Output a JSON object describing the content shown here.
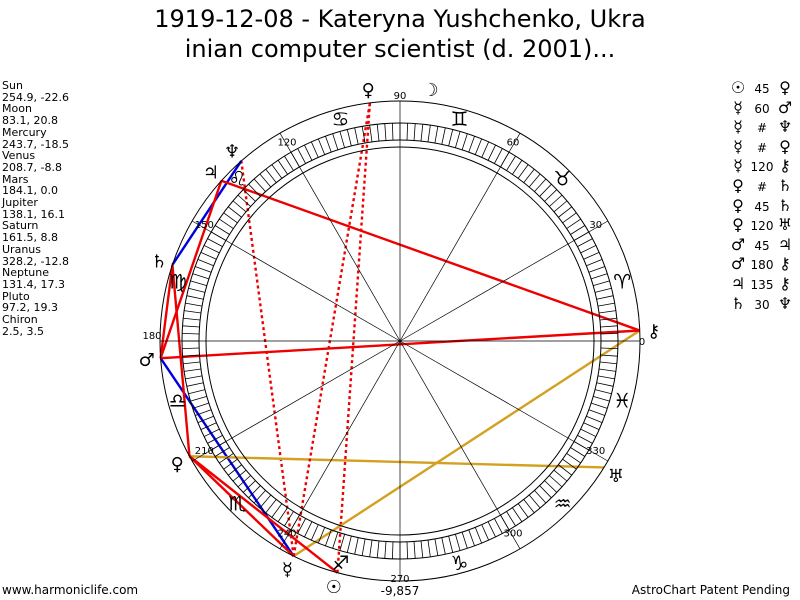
{
  "title_line1": "1919-12-08 - Kateryna Yushchenko, Ukra",
  "title_line2": "inian computer scientist (d. 2001)...",
  "positions": [
    {
      "name": "Sun",
      "coords": "254.9, -22.6",
      "glyph": "☉",
      "lon": 254.9
    },
    {
      "name": "Moon",
      "coords": "83.1, 20.8",
      "glyph": "☽",
      "lon": 83.1
    },
    {
      "name": "Mercury",
      "coords": "243.7, -18.5",
      "glyph": "☿",
      "lon": 243.7
    },
    {
      "name": "Venus",
      "coords": "208.7, -8.8",
      "glyph": "♀",
      "lon": 208.7
    },
    {
      "name": "Mars",
      "coords": "184.1, 0.0",
      "glyph": "♂",
      "lon": 184.1
    },
    {
      "name": "Jupiter",
      "coords": "138.1, 16.1",
      "glyph": "♃",
      "lon": 138.1
    },
    {
      "name": "Saturn",
      "coords": "161.5, 8.8",
      "glyph": "♄",
      "lon": 161.5
    },
    {
      "name": "Uranus",
      "coords": "328.2, -12.8",
      "glyph": "♅",
      "lon": 328.2
    },
    {
      "name": "Neptune",
      "coords": "131.4, 17.3",
      "glyph": "♆",
      "lon": 131.4
    },
    {
      "name": "Pluto",
      "coords": "97.2, 19.3",
      "glyph": "♀",
      "lon": 97.2
    },
    {
      "name": "Chiron",
      "coords": "2.5, 3.5",
      "glyph": "⚷",
      "lon": 2.5
    }
  ],
  "aspects": [
    {
      "p1": "☉",
      "angle": "45",
      "p2": "♀"
    },
    {
      "p1": "☿",
      "angle": "60",
      "p2": "♂"
    },
    {
      "p1": "☿",
      "angle": "#",
      "p2": "♆"
    },
    {
      "p1": "☿",
      "angle": "#",
      "p2": "♀"
    },
    {
      "p1": "☿",
      "angle": "120",
      "p2": "⚷"
    },
    {
      "p1": "♀",
      "angle": "#",
      "p2": "♄"
    },
    {
      "p1": "♀",
      "angle": "45",
      "p2": "♄"
    },
    {
      "p1": "♀",
      "angle": "120",
      "p2": "♅"
    },
    {
      "p1": "♂",
      "angle": "45",
      "p2": "♃"
    },
    {
      "p1": "♂",
      "angle": "180",
      "p2": "⚷"
    },
    {
      "p1": "♃",
      "angle": "135",
      "p2": "⚷"
    },
    {
      "p1": "♄",
      "angle": "30",
      "p2": "♆"
    }
  ],
  "degree_labels": [
    "0",
    "30",
    "60",
    "90",
    "120",
    "150",
    "180",
    "210",
    "240",
    "270",
    "300",
    "330"
  ],
  "zodiac_signs": [
    "♈",
    "♉",
    "♊",
    "♋",
    "♌",
    "♍",
    "♎",
    "♏",
    "♐",
    "♑",
    "♒",
    "♓"
  ],
  "footer_left": "www.harmoniclife.com",
  "footer_center": "-9,857",
  "footer_right": "AstroChart Patent Pending",
  "colors": {
    "red": "#ee0000",
    "blue": "#0000dd",
    "gold": "#d4a020",
    "line": "#000000"
  }
}
